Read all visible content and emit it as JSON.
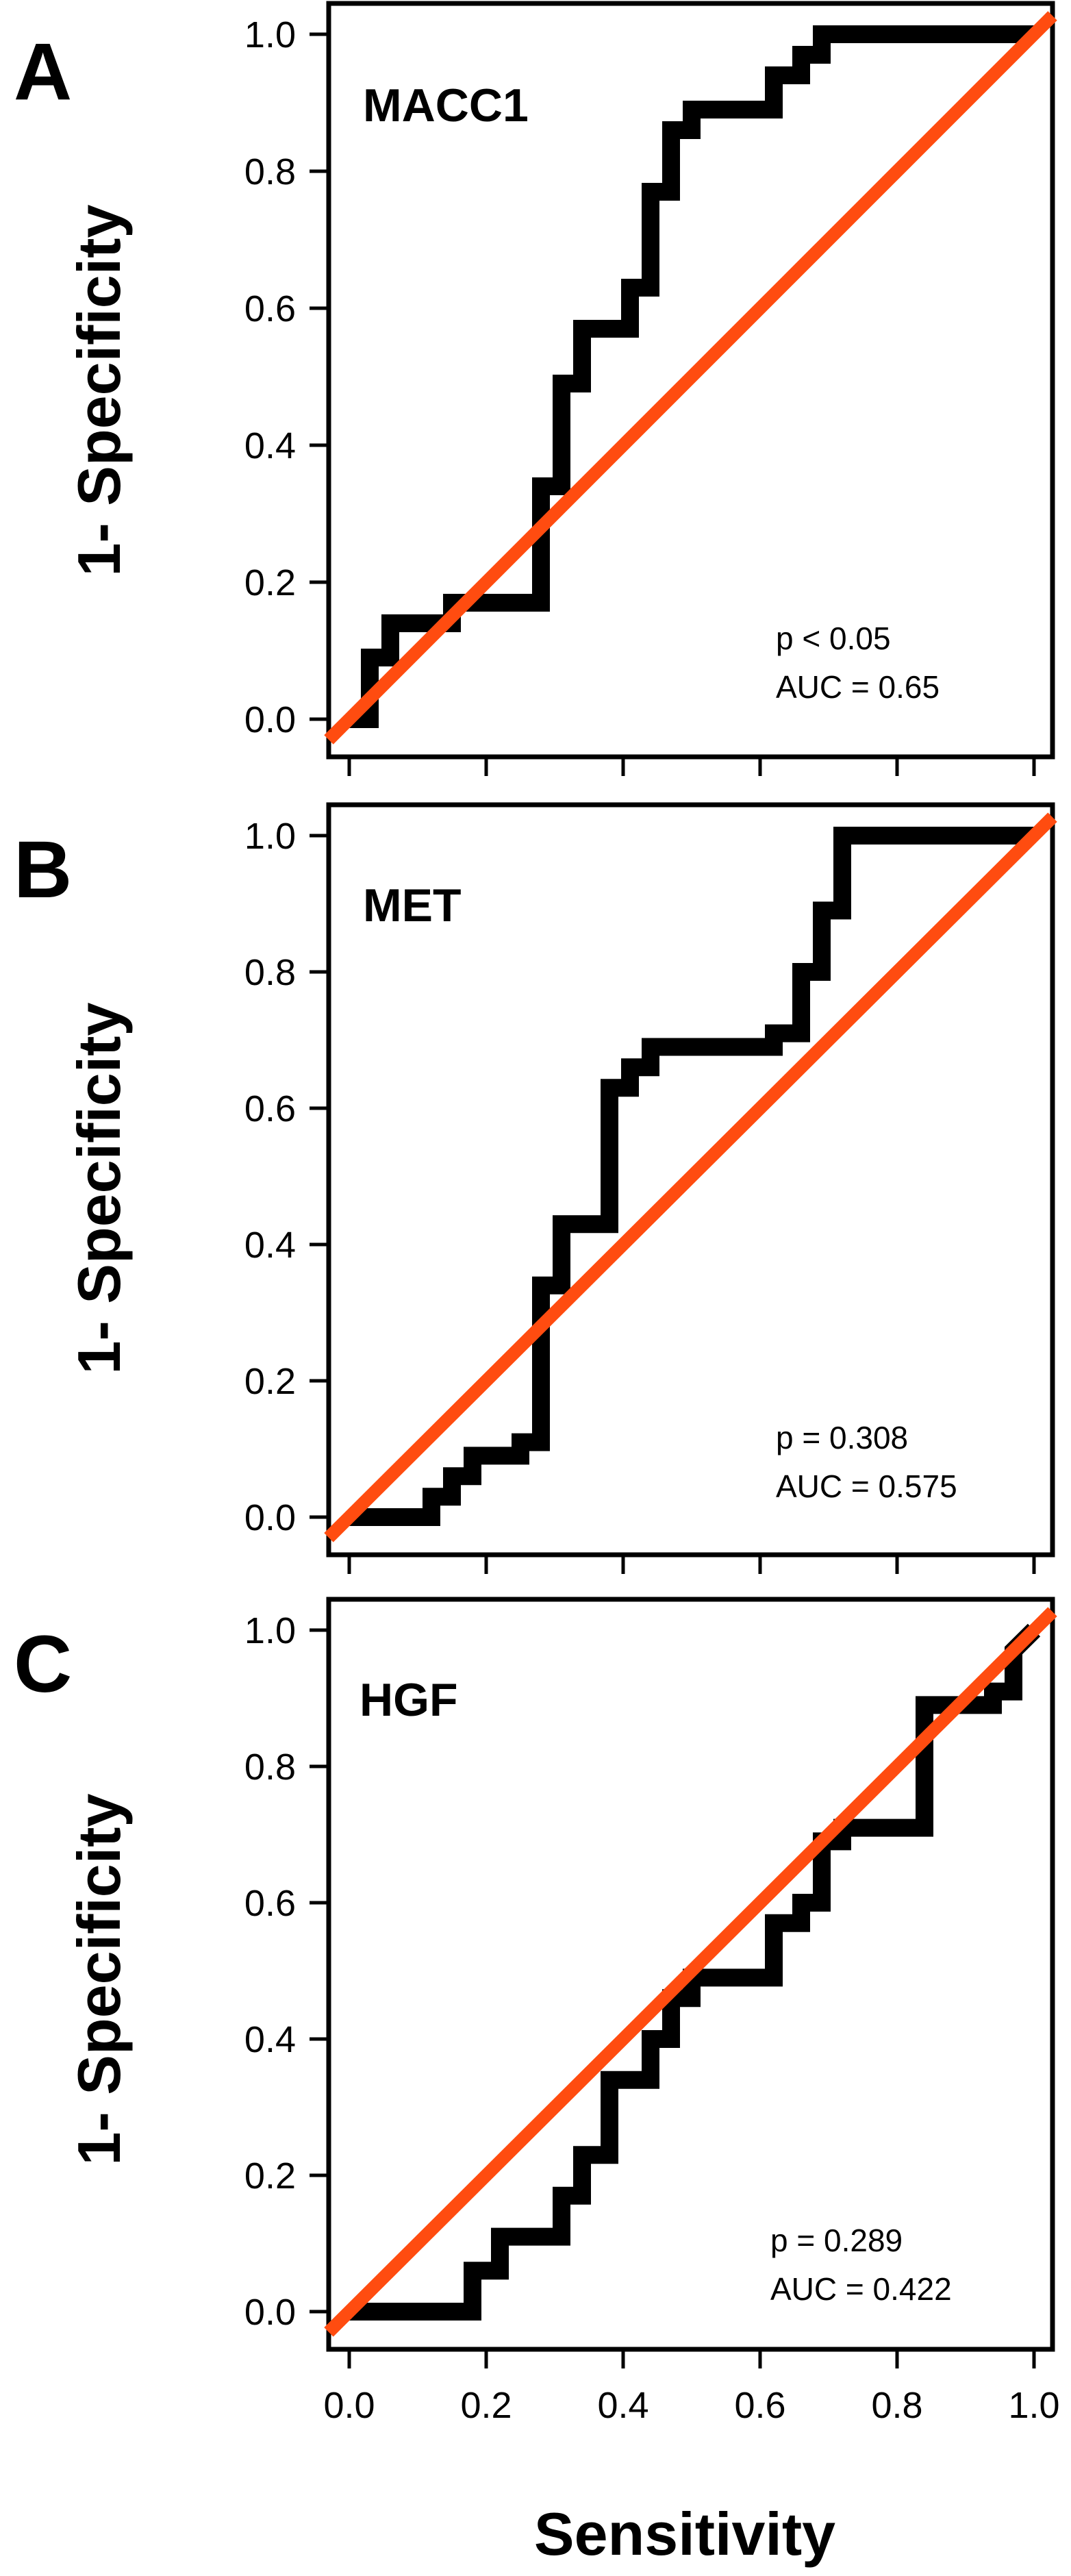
{
  "chart_data": [
    {
      "type": "line",
      "panel_label": "A",
      "marker": "MACC1",
      "p_text": "p < 0.05",
      "auc_text": "AUC = 0.65",
      "xlabel": "Sensitivity",
      "ylabel": "1- Specificity",
      "xlim": [
        0,
        1
      ],
      "ylim": [
        0,
        1
      ],
      "xticks": [
        "0.0",
        "0.2",
        "0.4",
        "0.6",
        "0.8",
        "1.0"
      ],
      "yticks": [
        "0.0",
        "0.2",
        "0.4",
        "0.6",
        "0.8",
        "1.0"
      ],
      "roc_color": "#000000",
      "reference_color": "#ff4c10",
      "series": [
        {
          "x": [
            0,
            0.03,
            0.03,
            0.06,
            0.06,
            0.11,
            0.11,
            0.15,
            0.15,
            0.19,
            0.19,
            0.28,
            0.28,
            0.31,
            0.31,
            0.34,
            0.34,
            0.38,
            0.38,
            0.41,
            0.41,
            0.44,
            0.44,
            0.47,
            0.47,
            0.5,
            0.5,
            0.62,
            0.62,
            0.66,
            0.66,
            0.69,
            0.69,
            0.72,
            0.72,
            1.0
          ],
          "y": [
            0,
            0,
            0.09,
            0.09,
            0.14,
            0.14,
            0.14,
            0.14,
            0.17,
            0.17,
            0.17,
            0.17,
            0.34,
            0.34,
            0.49,
            0.49,
            0.57,
            0.57,
            0.57,
            0.57,
            0.63,
            0.63,
            0.77,
            0.77,
            0.86,
            0.86,
            0.89,
            0.89,
            0.94,
            0.94,
            0.97,
            0.97,
            1.0,
            1.0,
            1.0,
            1.0
          ]
        }
      ]
    },
    {
      "type": "line",
      "panel_label": "B",
      "marker": "MET",
      "p_text": "p = 0.308",
      "auc_text": "AUC = 0.575",
      "xlabel": "Sensitivity",
      "ylabel": "1- Specificity",
      "xlim": [
        0,
        1
      ],
      "ylim": [
        0,
        1
      ],
      "xticks": [
        "0.0",
        "0.2",
        "0.4",
        "0.6",
        "0.8",
        "1.0"
      ],
      "yticks": [
        "0.0",
        "0.2",
        "0.4",
        "0.6",
        "0.8",
        "1.0"
      ],
      "roc_color": "#000000",
      "reference_color": "#ff4c10",
      "series": [
        {
          "x": [
            0,
            0.12,
            0.12,
            0.15,
            0.15,
            0.18,
            0.18,
            0.21,
            0.21,
            0.25,
            0.25,
            0.28,
            0.28,
            0.31,
            0.31,
            0.38,
            0.38,
            0.41,
            0.41,
            0.44,
            0.44,
            0.62,
            0.62,
            0.66,
            0.66,
            0.69,
            0.69,
            0.72,
            0.72,
            1.0
          ],
          "y": [
            0,
            0,
            0.03,
            0.03,
            0.06,
            0.06,
            0.09,
            0.09,
            0.09,
            0.09,
            0.11,
            0.11,
            0.34,
            0.34,
            0.43,
            0.43,
            0.63,
            0.63,
            0.66,
            0.66,
            0.69,
            0.69,
            0.71,
            0.71,
            0.8,
            0.8,
            0.89,
            0.89,
            1.0,
            1.0
          ]
        }
      ]
    },
    {
      "type": "line",
      "panel_label": "C",
      "marker": "HGF",
      "p_text": "p = 0.289",
      "auc_text": "AUC = 0.422",
      "xlabel": "Sensitivity",
      "ylabel": "1- Specificity",
      "xlim": [
        0,
        1
      ],
      "ylim": [
        0,
        1
      ],
      "xticks": [
        "0.0",
        "0.2",
        "0.4",
        "0.6",
        "0.8",
        "1.0"
      ],
      "yticks": [
        "0.0",
        "0.2",
        "0.4",
        "0.6",
        "0.8",
        "1.0"
      ],
      "roc_color": "#000000",
      "reference_color": "#ff4c10",
      "series": [
        {
          "x": [
            0,
            0.18,
            0.18,
            0.22,
            0.22,
            0.31,
            0.31,
            0.34,
            0.34,
            0.38,
            0.38,
            0.44,
            0.44,
            0.47,
            0.47,
            0.5,
            0.5,
            0.62,
            0.62,
            0.66,
            0.66,
            0.69,
            0.69,
            0.72,
            0.72,
            0.78,
            0.78,
            0.84,
            0.84,
            0.94,
            0.94,
            0.97,
            0.97,
            1.0
          ],
          "y": [
            0,
            0,
            0.06,
            0.06,
            0.11,
            0.11,
            0.17,
            0.17,
            0.23,
            0.23,
            0.34,
            0.34,
            0.4,
            0.4,
            0.46,
            0.46,
            0.49,
            0.49,
            0.57,
            0.57,
            0.6,
            0.6,
            0.69,
            0.69,
            0.71,
            0.71,
            0.71,
            0.71,
            0.89,
            0.89,
            0.91,
            0.91,
            0.97,
            1.0
          ]
        }
      ]
    }
  ]
}
